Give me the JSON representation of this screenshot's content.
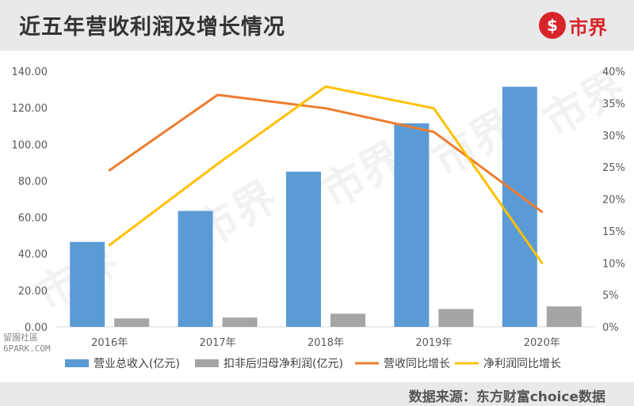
{
  "header": {
    "title": "近五年营收利润及增长情况",
    "logo_symbol": "$",
    "logo_text": "市界"
  },
  "footer": {
    "source": "数据来源：东方财富choice数据"
  },
  "site_mark": {
    "line1": "留園社區",
    "line2": "6PARK.COM"
  },
  "watermark": {
    "text": "市界"
  },
  "colors": {
    "revenue_bar": "#5b9bd5",
    "profit_bar": "#a5a5a5",
    "revenue_growth_line": "#ed7d31",
    "profit_growth_line": "#ffc000",
    "header_bg": "#e9e9e9",
    "brand_red": "#d9232a"
  },
  "chart_data": {
    "type": "bar",
    "categories": [
      "2016年",
      "2017年",
      "2018年",
      "2019年",
      "2020年"
    ],
    "left_axis": {
      "ylim": [
        0,
        140
      ],
      "ticks": [
        "0.00",
        "20.00",
        "40.00",
        "60.00",
        "80.00",
        "100.00",
        "120.00",
        "140.00"
      ]
    },
    "right_axis": {
      "ylim": [
        0,
        40
      ],
      "ticks": [
        "0%",
        "5%",
        "10%",
        "15%",
        "20%",
        "25%",
        "30%",
        "35%",
        "40%"
      ]
    },
    "series": [
      {
        "name": "营业总收入(亿元)",
        "kind": "bar",
        "axis": "left",
        "values": [
          46.5,
          63.5,
          85.0,
          111.5,
          131.5
        ]
      },
      {
        "name": "扣非后归母净利润(亿元)",
        "kind": "bar",
        "axis": "left",
        "values": [
          4.6,
          5.1,
          7.2,
          9.8,
          11.2
        ]
      },
      {
        "name": "营收同比增长",
        "kind": "line",
        "axis": "right",
        "values": [
          24.5,
          36.3,
          34.2,
          30.5,
          18.0
        ]
      },
      {
        "name": "净利润同比增长",
        "kind": "line",
        "axis": "right",
        "values": [
          12.8,
          25.5,
          37.6,
          34.2,
          10.0
        ]
      }
    ],
    "legend_position": "bottom",
    "grid": false
  }
}
